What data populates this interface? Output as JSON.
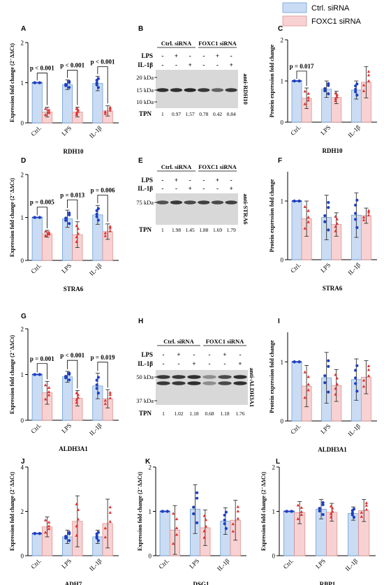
{
  "figure": {
    "legend": {
      "placement": "top-right",
      "items": [
        {
          "name": "Ctrl. siRNA",
          "color": "#c9dcf4",
          "stroke": "#6f9fd6"
        },
        {
          "name": "FOXC1 siRNA",
          "color": "#f8d2d2",
          "stroke": "#e08f8f"
        }
      ]
    }
  },
  "colors": {
    "ctrl_fill": "#c9dcf4",
    "ctrl_stroke": "#6f9fd6",
    "ctrl_point": "#1f3fbf",
    "foxc_fill": "#f8d2d2",
    "foxc_stroke": "#e08f8f",
    "foxc_point": "#e03030",
    "axis": "#000000"
  },
  "chart_data": [
    {
      "id": "A",
      "type": "bar",
      "categories": [
        "Ctrl.",
        "LPS",
        "IL-1β"
      ],
      "ylabel": "Expression fold change (2⁻ΔΔCt)",
      "xlabel": "RDH10",
      "ylim": [
        0,
        2
      ],
      "yticks": [
        0,
        1,
        2
      ],
      "series": [
        {
          "name": "Ctrl. siRNA",
          "values": [
            1.0,
            0.95,
            0.98
          ],
          "err": [
            0,
            0.12,
            0.18
          ]
        },
        {
          "name": "FOXC1 siRNA",
          "values": [
            0.27,
            0.27,
            0.3
          ],
          "err": [
            0.12,
            0.12,
            0.13
          ]
        }
      ],
      "brackets": [
        {
          "cat": 0,
          "text": "p < 0.001"
        },
        {
          "cat": 1,
          "text": "p < 0.001"
        },
        {
          "cat": 2,
          "text": "p < 0.001"
        }
      ]
    },
    {
      "id": "C",
      "type": "bar",
      "categories": [
        "Ctrl.",
        "LPS",
        "IL-1β"
      ],
      "ylabel": "Protein expression fold change",
      "xlabel": "RDH10",
      "ylim": [
        0,
        2
      ],
      "yticks": [
        0,
        1,
        2
      ],
      "series": [
        {
          "name": "Ctrl. siRNA",
          "values": [
            1.0,
            0.8,
            0.78
          ],
          "err": [
            0,
            0.2,
            0.22
          ]
        },
        {
          "name": "FOXC1 siRNA",
          "values": [
            0.58,
            0.6,
            0.97
          ],
          "err": [
            0.25,
            0.15,
            0.38
          ]
        }
      ],
      "brackets": [
        {
          "cat": 0,
          "text": "p = 0.017"
        }
      ]
    },
    {
      "id": "D",
      "type": "bar",
      "categories": [
        "Ctrl.",
        "LPS",
        "IL-1β"
      ],
      "ylabel": "Expression fold change (2⁻ΔΔCt)",
      "xlabel": "STRA6",
      "ylim": [
        0,
        2
      ],
      "yticks": [
        0,
        1,
        2
      ],
      "series": [
        {
          "name": "Ctrl. siRNA",
          "values": [
            1.0,
            0.97,
            1.06
          ],
          "err": [
            0,
            0.2,
            0.22
          ]
        },
        {
          "name": "FOXC1 siRNA",
          "values": [
            0.62,
            0.6,
            0.67
          ],
          "err": [
            0.08,
            0.3,
            0.18
          ]
        }
      ],
      "brackets": [
        {
          "cat": 0,
          "text": "p = 0.005"
        },
        {
          "cat": 1,
          "text": "p = 0.013"
        },
        {
          "cat": 2,
          "text": "p = 0.006"
        }
      ]
    },
    {
      "id": "F",
      "type": "bar",
      "categories": [
        "Ctrl.",
        "LPS",
        "IL-1β"
      ],
      "ylabel": "Protein expression fold change",
      "xlabel": "STRA6",
      "ylim": [
        0,
        1.5
      ],
      "yticks": [
        0,
        1
      ],
      "series": [
        {
          "name": "Ctrl. siRNA",
          "values": [
            1.0,
            0.72,
            0.76
          ],
          "err": [
            0,
            0.38,
            0.38
          ]
        },
        {
          "name": "FOXC1 siRNA",
          "values": [
            0.7,
            0.6,
            0.75
          ],
          "err": [
            0.3,
            0.2,
            0.13
          ]
        }
      ],
      "brackets": []
    },
    {
      "id": "G",
      "type": "bar",
      "categories": [
        "Ctrl.",
        "LPS",
        "IL-1β"
      ],
      "ylabel": "Expression fold change (2⁻ΔΔCt)",
      "xlabel": "ALDH3A1",
      "ylim": [
        0,
        2
      ],
      "yticks": [
        0,
        1,
        2
      ],
      "series": [
        {
          "name": "Ctrl. siRNA",
          "values": [
            1.0,
            0.95,
            0.75
          ],
          "err": [
            0,
            0.12,
            0.28
          ]
        },
        {
          "name": "FOXC1 siRNA",
          "values": [
            0.6,
            0.48,
            0.47
          ],
          "err": [
            0.25,
            0.17,
            0.2
          ]
        }
      ],
      "brackets": [
        {
          "cat": 0,
          "text": "p = 0.001"
        },
        {
          "cat": 1,
          "text": "p < 0.001"
        },
        {
          "cat": 2,
          "text": "p = 0.019"
        }
      ]
    },
    {
      "id": "I",
      "type": "bar",
      "categories": [
        "Ctrl.",
        "LPS",
        "IL-1β"
      ],
      "ylabel": "Protein expression fold change",
      "xlabel": "ALDH3A1",
      "ylim": [
        0,
        1.5
      ],
      "yticks": [
        0,
        1
      ],
      "series": [
        {
          "name": "Ctrl. siRNA",
          "values": [
            1.0,
            0.73,
            0.7
          ],
          "err": [
            0,
            0.43,
            0.35
          ]
        },
        {
          "name": "FOXC1 siRNA",
          "values": [
            0.59,
            0.6,
            0.74
          ],
          "err": [
            0.35,
            0.27,
            0.28
          ]
        }
      ],
      "brackets": []
    },
    {
      "id": "J",
      "type": "bar",
      "categories": [
        "Ctrl.",
        "LPS",
        "IL-1β"
      ],
      "ylabel": "Expression fold change (2⁻ΔΔCt)",
      "xlabel": "ADH7",
      "ylim": [
        0,
        4
      ],
      "yticks": [
        0,
        2,
        4
      ],
      "series": [
        {
          "name": "Ctrl. siRNA",
          "values": [
            1.0,
            0.85,
            0.85
          ],
          "err": [
            0,
            0.3,
            0.3
          ]
        },
        {
          "name": "FOXC1 siRNA",
          "values": [
            1.3,
            1.55,
            1.45
          ],
          "err": [
            0.45,
            1.15,
            1.1
          ]
        }
      ],
      "brackets": []
    },
    {
      "id": "K",
      "type": "bar",
      "categories": [
        "Ctrl.",
        "LPS",
        "IL-1β"
      ],
      "ylabel": "Expression fold change (2⁻ΔΔCt)",
      "xlabel": "DSG1",
      "ylim": [
        0,
        2
      ],
      "yticks": [
        0,
        1,
        2
      ],
      "series": [
        {
          "name": "Ctrl. siRNA",
          "values": [
            1.0,
            1.05,
            0.78
          ],
          "err": [
            0,
            0.55,
            0.3
          ]
        },
        {
          "name": "FOXC1 siRNA",
          "values": [
            0.58,
            0.63,
            0.8
          ],
          "err": [
            0.55,
            0.4,
            0.45
          ]
        }
      ],
      "brackets": []
    },
    {
      "id": "L",
      "type": "bar",
      "categories": [
        "Ctrl.",
        "LPS",
        "IL-1β"
      ],
      "ylabel": "Expression fold change (2⁻ΔΔCt)",
      "xlabel": "RBP1",
      "ylim": [
        0,
        2
      ],
      "yticks": [
        0,
        1,
        2
      ],
      "series": [
        {
          "name": "Ctrl. siRNA",
          "values": [
            1.0,
            1.05,
            0.95
          ],
          "err": [
            0,
            0.22,
            0.15
          ]
        },
        {
          "name": "FOXC1 siRNA",
          "values": [
            0.97,
            0.98,
            1.02
          ],
          "err": [
            0.25,
            0.2,
            0.25
          ]
        }
      ],
      "brackets": []
    }
  ],
  "blots": [
    {
      "id": "B",
      "groups": [
        "Ctrl. siRNA",
        "FOXC1 siRNA"
      ],
      "row_labels": [
        "LPS",
        "IL-1β"
      ],
      "signs": [
        [
          "-",
          "+",
          "-",
          "-",
          "+",
          "-"
        ],
        [
          "-",
          "-",
          "+",
          "-",
          "-",
          "+"
        ]
      ],
      "kda": [
        "20 kDa",
        "15 kDa",
        "10 kDa"
      ],
      "antibody": "anti-RDH10",
      "tpn_label": "TPN",
      "tpn": [
        "1",
        "0.97",
        "1.57",
        "0.78",
        "0.42",
        "0.84"
      ],
      "band_intensity": [
        0.9,
        0.9,
        0.95,
        0.85,
        0.6,
        0.85
      ]
    },
    {
      "id": "E",
      "groups": [
        "Ctrl. siRNA",
        "FOXC1 siRNA"
      ],
      "row_labels": [
        "LPS",
        "IL-1β"
      ],
      "signs": [
        [
          "-",
          "+",
          "-",
          "-",
          "+",
          "-"
        ],
        [
          "-",
          "-",
          "+",
          "-",
          "-",
          "+"
        ]
      ],
      "kda": [
        "75 kDa"
      ],
      "antibody": "anti-STRA6",
      "tpn_label": "TPN",
      "tpn": [
        "1",
        "1.98",
        "1.45",
        "1.88",
        "1.69",
        "1.79"
      ],
      "band_intensity": [
        0.7,
        0.85,
        0.75,
        0.8,
        0.75,
        0.8
      ]
    },
    {
      "id": "H",
      "groups": [
        "Ctrl. siRNA",
        "FOXC1 siRNA"
      ],
      "row_labels": [
        "LPS",
        "IL-1β"
      ],
      "signs": [
        [
          "-",
          "+",
          "-",
          "-",
          "+",
          "-"
        ],
        [
          "-",
          "-",
          "+",
          "-",
          "-",
          "+"
        ]
      ],
      "kda": [
        "50 kDa",
        "37 kDa"
      ],
      "antibody": "anti-ALDH3A1",
      "tpn_label": "TPN",
      "tpn": [
        "1",
        "1.02",
        "1.18",
        "0.68",
        "1.18",
        "1.76"
      ],
      "band_intensity": [
        0.85,
        0.85,
        0.9,
        0.35,
        0.75,
        0.9
      ]
    }
  ]
}
